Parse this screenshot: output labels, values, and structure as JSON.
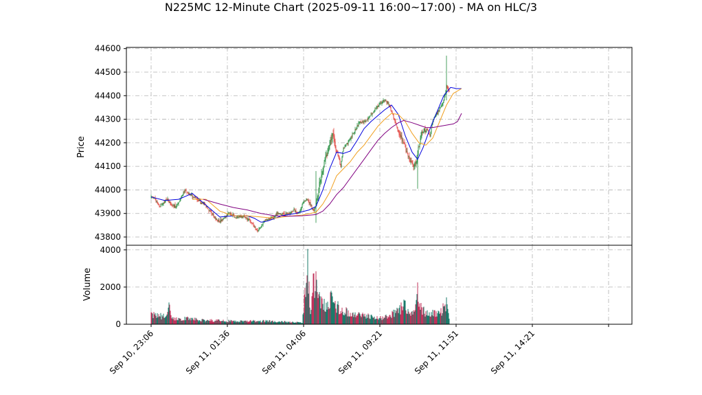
{
  "chart_data": {
    "type": "candlestick",
    "title": "N225MC 12-Minute Chart (2025-09-11 16:00~17:00) - MA on HLC/3",
    "price_panel": {
      "ylabel": "Price",
      "ylim": [
        43765,
        44605
      ],
      "yticks": [
        43800,
        43900,
        44000,
        44100,
        44200,
        44300,
        44400,
        44500,
        44600
      ],
      "grid": true
    },
    "volume_panel": {
      "ylabel": "Volume",
      "ylim": [
        0,
        4250
      ],
      "yticks": [
        0,
        2000,
        4000
      ],
      "grid": true
    },
    "x_axis": {
      "tick_labels": [
        "Sep 10, 23:06",
        "Sep 11, 01:36",
        "Sep 11, 04:06",
        "Sep 11, 09:21",
        "Sep 11, 11:51",
        "Sep 11, 14:21"
      ],
      "label_rotation_deg": 45
    },
    "colors": {
      "up": "#1f8a3a",
      "down": "#e0403a",
      "volume_up": "#1a7a6a",
      "volume_down": "#c0305a",
      "grid": "#b0b0b0",
      "ma_fast": "#0000dd",
      "ma_mid": "#f0a020",
      "ma_slow": "#800080"
    },
    "price_path": [
      [
        0,
        43970
      ],
      [
        6,
        43960
      ],
      [
        12,
        43930
      ],
      [
        18,
        43945
      ],
      [
        24,
        43960
      ],
      [
        30,
        43935
      ],
      [
        36,
        43930
      ],
      [
        42,
        43960
      ],
      [
        48,
        43995
      ],
      [
        54,
        43985
      ],
      [
        60,
        43975
      ],
      [
        66,
        43960
      ],
      [
        72,
        43945
      ],
      [
        78,
        43940
      ],
      [
        84,
        43915
      ],
      [
        90,
        43895
      ],
      [
        96,
        43870
      ],
      [
        100,
        43865
      ],
      [
        106,
        43880
      ],
      [
        112,
        43900
      ],
      [
        118,
        43895
      ],
      [
        124,
        43880
      ],
      [
        130,
        43890
      ],
      [
        136,
        43885
      ],
      [
        142,
        43870
      ],
      [
        148,
        43860
      ],
      [
        152,
        43830
      ],
      [
        156,
        43825
      ],
      [
        160,
        43845
      ],
      [
        166,
        43870
      ],
      [
        172,
        43875
      ],
      [
        178,
        43885
      ],
      [
        184,
        43905
      ],
      [
        190,
        43895
      ],
      [
        196,
        43895
      ],
      [
        202,
        43905
      ],
      [
        208,
        43915
      ],
      [
        214,
        43900
      ],
      [
        218,
        43920
      ],
      [
        222,
        43950
      ],
      [
        226,
        43960
      ],
      [
        230,
        43950
      ],
      [
        236,
        43910
      ],
      [
        240,
        43930
      ],
      [
        246,
        44040
      ],
      [
        252,
        44110
      ],
      [
        258,
        44170
      ],
      [
        264,
        44250
      ],
      [
        268,
        44180
      ],
      [
        272,
        44150
      ],
      [
        276,
        44100
      ],
      [
        280,
        44180
      ],
      [
        286,
        44200
      ],
      [
        292,
        44230
      ],
      [
        298,
        44260
      ],
      [
        304,
        44290
      ],
      [
        310,
        44290
      ],
      [
        316,
        44300
      ],
      [
        322,
        44330
      ],
      [
        328,
        44350
      ],
      [
        334,
        44370
      ],
      [
        340,
        44380
      ],
      [
        346,
        44360
      ],
      [
        350,
        44340
      ],
      [
        354,
        44300
      ],
      [
        358,
        44260
      ],
      [
        362,
        44230
      ],
      [
        366,
        44210
      ],
      [
        370,
        44180
      ],
      [
        374,
        44140
      ],
      [
        378,
        44120
      ],
      [
        382,
        44100
      ],
      [
        386,
        44130
      ],
      [
        390,
        44190
      ],
      [
        394,
        44240
      ],
      [
        398,
        44250
      ],
      [
        402,
        44260
      ],
      [
        406,
        44230
      ],
      [
        410,
        44290
      ],
      [
        414,
        44320
      ],
      [
        418,
        44330
      ],
      [
        422,
        44360
      ],
      [
        426,
        44380
      ],
      [
        430,
        44440
      ],
      [
        434,
        44420
      ]
    ],
    "ma_series": [
      {
        "key": "ma_fast",
        "values": [
          [
            0,
            43970
          ],
          [
            20,
            43955
          ],
          [
            40,
            43960
          ],
          [
            60,
            43985
          ],
          [
            80,
            43935
          ],
          [
            100,
            43885
          ],
          [
            120,
            43890
          ],
          [
            140,
            43890
          ],
          [
            150,
            43880
          ],
          [
            160,
            43863
          ],
          [
            170,
            43868
          ],
          [
            190,
            43890
          ],
          [
            210,
            43900
          ],
          [
            230,
            43915
          ],
          [
            240,
            43930
          ],
          [
            250,
            44000
          ],
          [
            260,
            44090
          ],
          [
            270,
            44160
          ],
          [
            280,
            44155
          ],
          [
            290,
            44165
          ],
          [
            300,
            44210
          ],
          [
            310,
            44260
          ],
          [
            320,
            44290
          ],
          [
            330,
            44315
          ],
          [
            340,
            44340
          ],
          [
            350,
            44360
          ],
          [
            360,
            44320
          ],
          [
            370,
            44230
          ],
          [
            380,
            44160
          ],
          [
            388,
            44130
          ],
          [
            396,
            44180
          ],
          [
            406,
            44260
          ],
          [
            416,
            44330
          ],
          [
            426,
            44400
          ],
          [
            436,
            44435
          ],
          [
            445,
            44430
          ],
          [
            452,
            44430
          ]
        ]
      },
      {
        "key": "ma_mid",
        "values": [
          [
            60,
            43960
          ],
          [
            80,
            43960
          ],
          [
            100,
            43910
          ],
          [
            120,
            43890
          ],
          [
            140,
            43890
          ],
          [
            160,
            43885
          ],
          [
            180,
            43880
          ],
          [
            200,
            43888
          ],
          [
            220,
            43893
          ],
          [
            240,
            43905
          ],
          [
            250,
            43940
          ],
          [
            260,
            43990
          ],
          [
            270,
            44060
          ],
          [
            280,
            44090
          ],
          [
            290,
            44120
          ],
          [
            300,
            44160
          ],
          [
            310,
            44190
          ],
          [
            320,
            44230
          ],
          [
            330,
            44270
          ],
          [
            340,
            44300
          ],
          [
            350,
            44325
          ],
          [
            360,
            44320
          ],
          [
            370,
            44290
          ],
          [
            380,
            44240
          ],
          [
            390,
            44200
          ],
          [
            400,
            44190
          ],
          [
            410,
            44220
          ],
          [
            420,
            44290
          ],
          [
            430,
            44360
          ],
          [
            440,
            44410
          ],
          [
            452,
            44430
          ]
        ]
      },
      {
        "key": "ma_slow",
        "values": [
          [
            76,
            43960
          ],
          [
            100,
            43940
          ],
          [
            120,
            43925
          ],
          [
            140,
            43915
          ],
          [
            160,
            43900
          ],
          [
            180,
            43890
          ],
          [
            200,
            43888
          ],
          [
            220,
            43890
          ],
          [
            240,
            43895
          ],
          [
            250,
            43910
          ],
          [
            260,
            43940
          ],
          [
            270,
            43980
          ],
          [
            280,
            44010
          ],
          [
            290,
            44050
          ],
          [
            300,
            44090
          ],
          [
            310,
            44130
          ],
          [
            320,
            44170
          ],
          [
            330,
            44210
          ],
          [
            340,
            44240
          ],
          [
            350,
            44265
          ],
          [
            360,
            44285
          ],
          [
            368,
            44295
          ],
          [
            380,
            44285
          ],
          [
            390,
            44275
          ],
          [
            400,
            44265
          ],
          [
            410,
            44265
          ],
          [
            420,
            44270
          ],
          [
            430,
            44275
          ],
          [
            440,
            44280
          ],
          [
            446,
            44290
          ],
          [
            452,
            44325
          ]
        ]
      }
    ],
    "volume_path": [
      [
        0,
        500
      ],
      [
        10,
        450
      ],
      [
        20,
        400
      ],
      [
        26,
        900
      ],
      [
        30,
        350
      ],
      [
        40,
        300
      ],
      [
        50,
        320
      ],
      [
        60,
        260
      ],
      [
        70,
        240
      ],
      [
        80,
        220
      ],
      [
        90,
        200
      ],
      [
        100,
        200
      ],
      [
        110,
        180
      ],
      [
        120,
        160
      ],
      [
        130,
        150
      ],
      [
        140,
        160
      ],
      [
        150,
        180
      ],
      [
        160,
        160
      ],
      [
        170,
        180
      ],
      [
        180,
        160
      ],
      [
        190,
        150
      ],
      [
        200,
        120
      ],
      [
        210,
        100
      ],
      [
        220,
        90
      ],
      [
        228,
        3200
      ],
      [
        232,
        900
      ],
      [
        236,
        2000
      ],
      [
        240,
        2300
      ],
      [
        246,
        1300
      ],
      [
        250,
        1100
      ],
      [
        256,
        1000
      ],
      [
        262,
        1400
      ],
      [
        266,
        1000
      ],
      [
        272,
        900
      ],
      [
        280,
        700
      ],
      [
        290,
        600
      ],
      [
        300,
        500
      ],
      [
        310,
        450
      ],
      [
        320,
        400
      ],
      [
        330,
        350
      ],
      [
        336,
        300
      ],
      [
        340,
        350
      ],
      [
        350,
        500
      ],
      [
        360,
        700
      ],
      [
        366,
        1000
      ],
      [
        372,
        900
      ],
      [
        380,
        700
      ],
      [
        384,
        550
      ],
      [
        388,
        1500
      ],
      [
        392,
        900
      ],
      [
        396,
        700
      ],
      [
        400,
        600
      ],
      [
        410,
        650
      ],
      [
        420,
        600
      ],
      [
        426,
        900
      ],
      [
        430,
        1100
      ],
      [
        434,
        300
      ]
    ],
    "volume_spikes": [
      [
        228,
        4050
      ],
      [
        240,
        2850
      ],
      [
        388,
        2250
      ],
      [
        262,
        1800
      ]
    ]
  }
}
